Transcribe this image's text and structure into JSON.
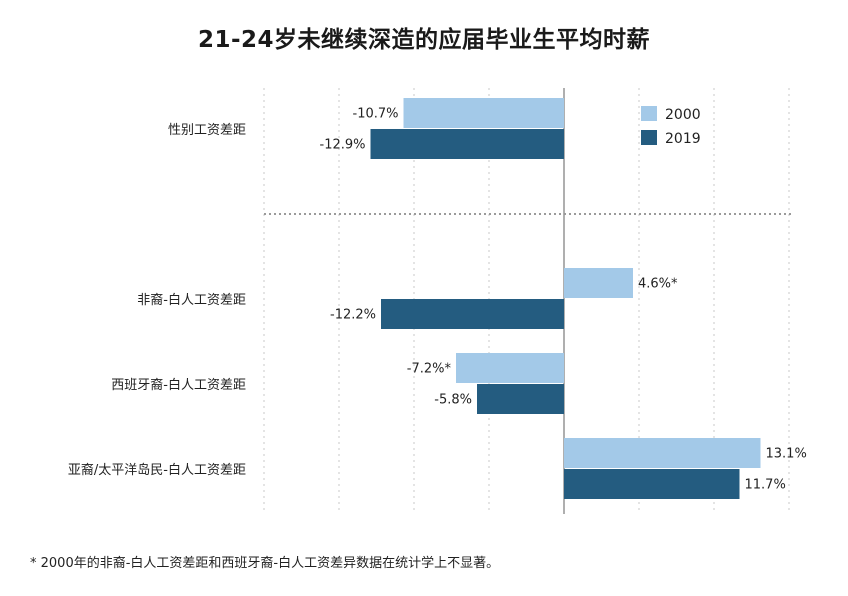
{
  "chart_data": {
    "type": "bar",
    "orientation": "horizontal",
    "title": "21-24岁未继续深造的应届毕业生平均时薪",
    "categories": [
      "性别工资差距",
      "非裔-白人工资差距",
      "西班牙裔-白人工资差距",
      "亚裔/太平洋岛民-白人工资差距"
    ],
    "series": [
      {
        "name": "2000",
        "color": "#a3c9e8",
        "values": [
          -10.7,
          4.6,
          -7.2,
          13.1
        ],
        "labels": [
          "-10.7%",
          "4.6%*",
          "-7.2%*",
          "13.1%"
        ]
      },
      {
        "name": "2019",
        "color": "#245c80",
        "values": [
          -12.9,
          -12.2,
          -5.8,
          11.7
        ],
        "labels": [
          "-12.9%",
          "-12.2%",
          "-5.8%",
          "11.7%"
        ]
      }
    ],
    "xlim": [
      -20,
      15
    ],
    "grid": true,
    "legend": "top-right"
  },
  "footnote": "* 2000年的非裔-白人工资差距和西班牙裔-白人工资差异数据在统计学上不显著。"
}
